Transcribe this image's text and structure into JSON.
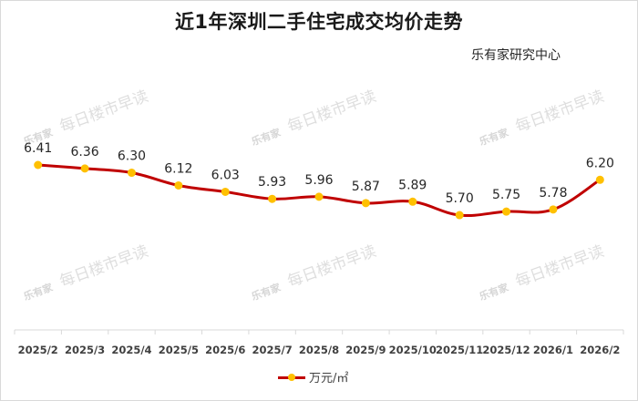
{
  "title": "近1年深圳二手住宅成交均价走势",
  "source": "乐有家研究中心",
  "watermark": {
    "logo": "乐有家",
    "text": "每日楼市早读"
  },
  "legend": {
    "label": "万元/㎡"
  },
  "colors": {
    "line": "#c00000",
    "marker": "#ffc000",
    "axis": "#d9d9d9",
    "text": "#404040"
  },
  "chart_data": {
    "type": "line",
    "title": "近1年深圳二手住宅成交均价走势",
    "subtitle": "乐有家研究中心",
    "xlabel": "",
    "ylabel": "",
    "categories": [
      "2025/2",
      "2025/3",
      "2025/4",
      "2025/5",
      "2025/6",
      "2025/7",
      "2025/8",
      "2025/9",
      "2025/10",
      "2025/11",
      "2025/12",
      "2026/1",
      "2026/2"
    ],
    "series": [
      {
        "name": "万元/㎡",
        "values": [
          6.41,
          6.36,
          6.3,
          6.12,
          6.03,
          5.93,
          5.96,
          5.87,
          5.89,
          5.7,
          5.75,
          5.78,
          6.2
        ]
      }
    ],
    "data_labels": true,
    "grid": false,
    "legend_position": "bottom",
    "smooth": true
  }
}
